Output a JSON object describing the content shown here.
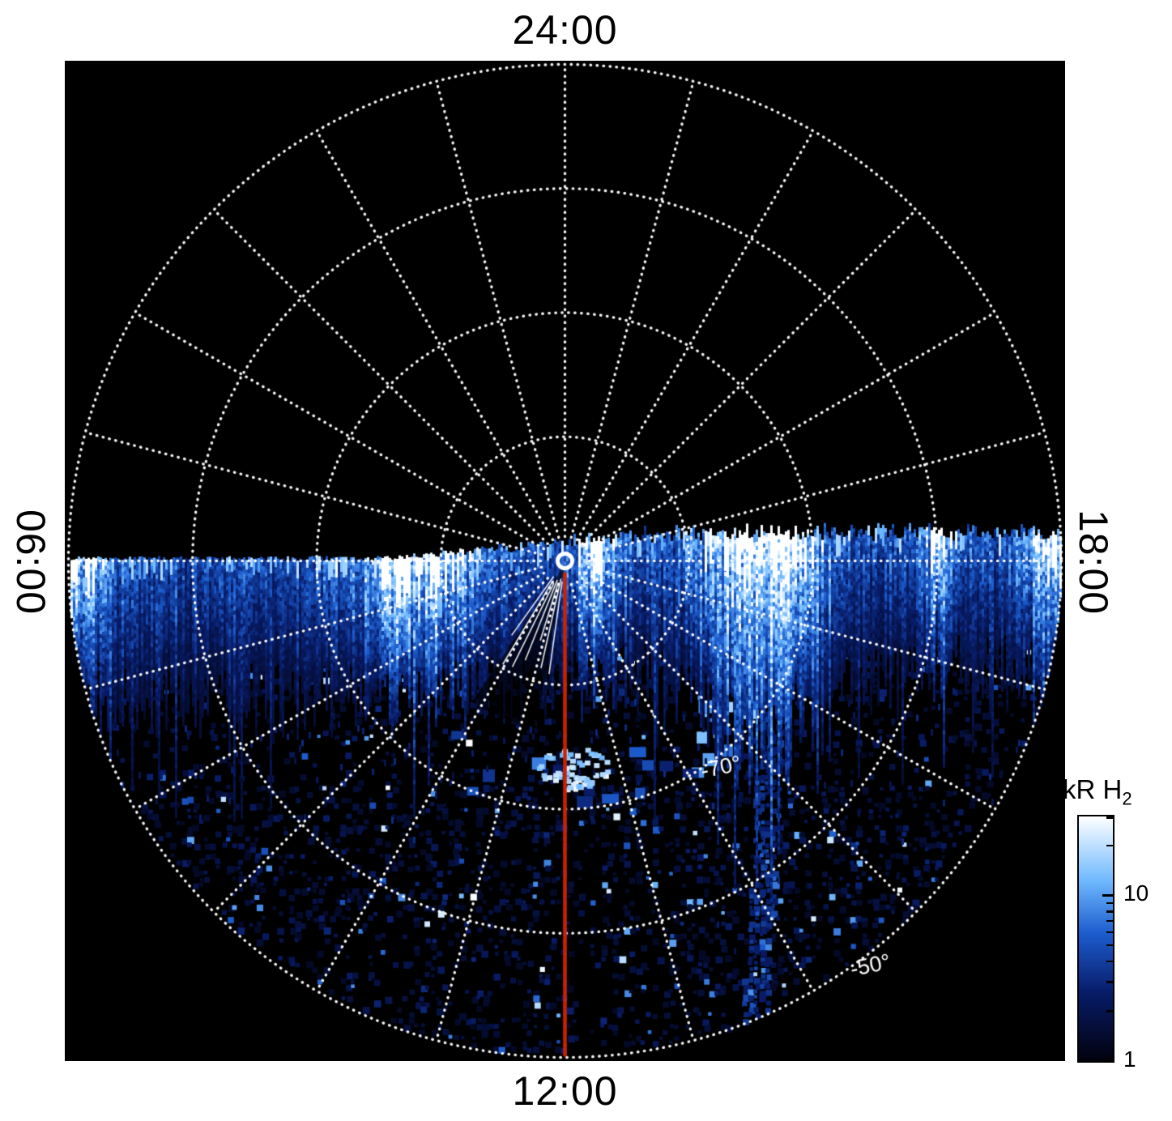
{
  "page": {
    "background": "#ffffff"
  },
  "plot": {
    "background": "#000000",
    "grid_color": "#ffffff",
    "red_line_color": "#cc2200",
    "center_marker_color": "#ffffff",
    "time_labels": {
      "top": "24:00",
      "bottom": "12:00",
      "left": "06:00",
      "right": "18:00"
    },
    "lat_ring_labels": [
      {
        "text": "-70°",
        "lat": -70
      },
      {
        "text": "-50°",
        "lat": -50
      }
    ]
  },
  "colorbar": {
    "title_main": "kR H",
    "title_sub": "2",
    "scale": "log",
    "min": 1,
    "max": 30,
    "major_ticks": [
      1,
      10
    ],
    "minor_ticks": [
      2,
      3,
      4,
      5,
      6,
      7,
      8,
      9,
      20,
      30
    ],
    "tick_labels": {
      "ten": "10",
      "one": "1"
    }
  },
  "chart_data": {
    "type": "heatmap",
    "projection": "polar",
    "description": "Polar projection of H2 auroral emission; pole at center, the 12:00 (bottom) hemisphere contains data, the 24:00 (top) half is blank.",
    "angular_axis": {
      "quantity": "local time",
      "labels": [
        "24:00",
        "06:00",
        "12:00",
        "18:00"
      ],
      "positions": [
        "top",
        "left",
        "bottom",
        "right"
      ],
      "spoke_interval_deg": 15
    },
    "radial_axis": {
      "quantity": "latitude (deg)",
      "center": -90,
      "edge": -50,
      "rings": [
        -80,
        -70,
        -60,
        -50
      ],
      "labeled_rings": [
        -70,
        -50
      ]
    },
    "colorbar": {
      "label": "kR H2",
      "scale": "log",
      "range": [
        1,
        30
      ],
      "labeled_ticks": [
        1,
        10
      ]
    },
    "annotations": [
      {
        "type": "meridian-line",
        "local_time": "12:00",
        "color": "#cc2200"
      },
      {
        "type": "center-marker",
        "shape": "open circle",
        "color": "#ffffff"
      }
    ],
    "features": [
      {
        "name": "main emission band",
        "location": "just below the 06:00-18:00 line spanning dawn to dusk",
        "intensity": "10-30+ kR, saturating to white near the 07:00-08:00 and 16:00-17:00 sectors"
      },
      {
        "name": "dark lane",
        "location": "equatorward of the main band near -75 deg latitude"
      },
      {
        "name": "bright patch",
        "location": "near the 12:00 meridian at about -75 deg",
        "intensity": "~30 kR"
      },
      {
        "name": "patchy background emission",
        "location": "throughout the dayside disk",
        "intensity": "1-10 kR speckle"
      }
    ]
  }
}
